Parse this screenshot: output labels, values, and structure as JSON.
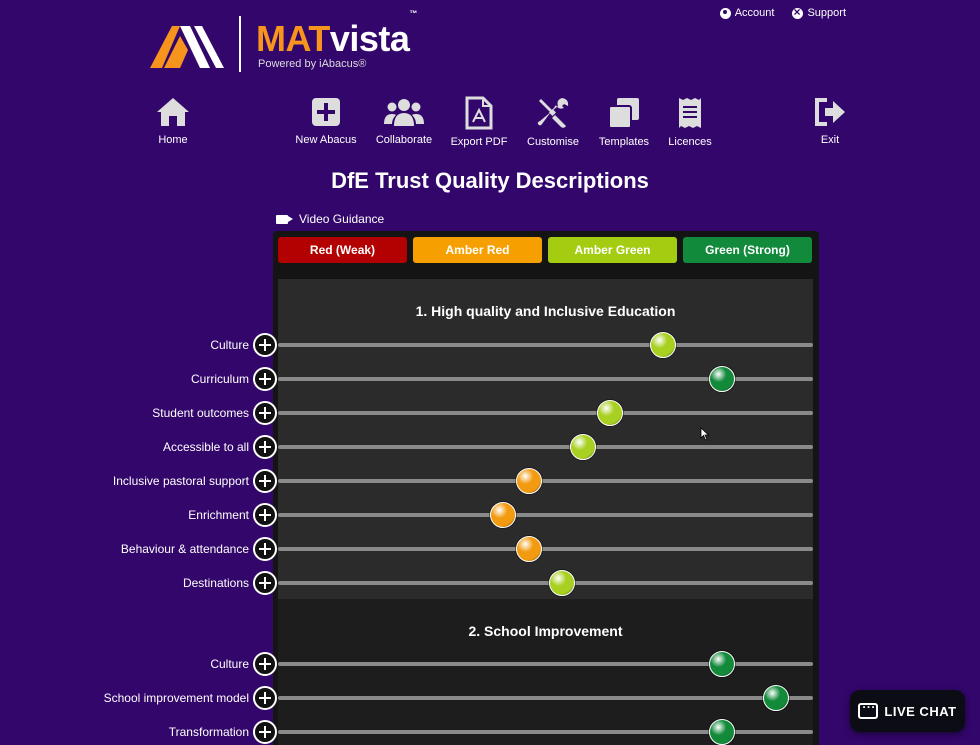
{
  "header": {
    "account_label": "Account",
    "support_label": "Support",
    "logo_mat": "MAT",
    "logo_vista": "vista",
    "logo_tm": "™",
    "logo_sub": "Powered by iAbacus®"
  },
  "toolbar": {
    "home": "Home",
    "new_abacus": "New Abacus",
    "collaborate": "Collaborate",
    "export_pdf": "Export PDF",
    "customise": "Customise",
    "templates": "Templates",
    "licences": "Licences",
    "exit": "Exit"
  },
  "page_title": "DfE Trust Quality Descriptions",
  "video_guidance": "Video Guidance",
  "legend": [
    {
      "label": "Red (Weak)",
      "color": "#b30000"
    },
    {
      "label": "Amber Red",
      "color": "#f5a000"
    },
    {
      "label": "Amber Green",
      "color": "#a4cc10"
    },
    {
      "label": "Green (Strong)",
      "color": "#118a3c"
    }
  ],
  "sections": [
    {
      "title": "1. High quality and Inclusive Education",
      "rows": [
        {
          "label": "Culture",
          "value": 0.72,
          "rating": "amber-green"
        },
        {
          "label": "Curriculum",
          "value": 0.83,
          "rating": "green"
        },
        {
          "label": "Student outcomes",
          "value": 0.62,
          "rating": "amber-green"
        },
        {
          "label": "Accessible to all",
          "value": 0.57,
          "rating": "amber-green"
        },
        {
          "label": "Inclusive pastoral support",
          "value": 0.47,
          "rating": "amber-red"
        },
        {
          "label": "Enrichment",
          "value": 0.42,
          "rating": "amber-red"
        },
        {
          "label": "Behaviour & attendance",
          "value": 0.47,
          "rating": "amber-red"
        },
        {
          "label": "Destinations",
          "value": 0.53,
          "rating": "amber-green"
        }
      ]
    },
    {
      "title": "2. School Improvement",
      "rows": [
        {
          "label": "Culture",
          "value": 0.83,
          "rating": "green"
        },
        {
          "label": "School improvement model",
          "value": 0.93,
          "rating": "green"
        },
        {
          "label": "Transformation",
          "value": 0.83,
          "rating": "green"
        }
      ]
    }
  ],
  "rating_colors": {
    "amber-red": "#f29a10",
    "amber-green": "#a8d020",
    "green": "#128a3a"
  },
  "live_chat": "LIVE CHAT"
}
